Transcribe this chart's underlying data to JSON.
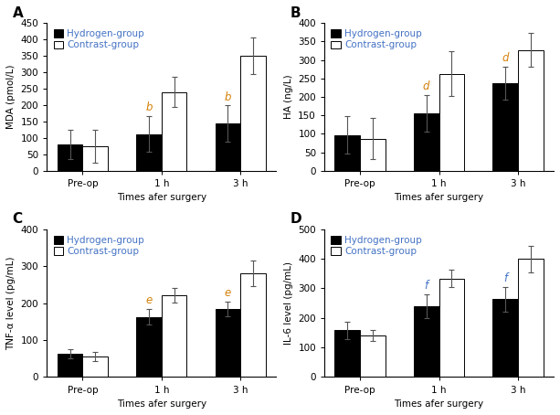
{
  "panels": [
    {
      "label": "A",
      "ylabel": "MDA (pmol/L)",
      "ylim": [
        0,
        450
      ],
      "yticks": [
        0,
        50,
        100,
        150,
        200,
        250,
        300,
        350,
        400,
        450
      ],
      "categories": [
        "Pre-op",
        "1 h",
        "3 h"
      ],
      "hydrogen_vals": [
        80,
        112,
        145
      ],
      "hydrogen_err": [
        45,
        55,
        55
      ],
      "contrast_vals": [
        75,
        240,
        350
      ],
      "contrast_err": [
        50,
        45,
        55
      ],
      "annot_labels": [
        null,
        "b",
        "b"
      ],
      "annot_color": "#d4820a"
    },
    {
      "label": "B",
      "ylabel": "HA (ng/L)",
      "ylim": [
        0,
        400
      ],
      "yticks": [
        0,
        50,
        100,
        150,
        200,
        250,
        300,
        350,
        400
      ],
      "categories": [
        "Pre-op",
        "1 h",
        "3 h"
      ],
      "hydrogen_vals": [
        97,
        156,
        237
      ],
      "hydrogen_err": [
        50,
        50,
        45
      ],
      "contrast_vals": [
        87,
        263,
        327
      ],
      "contrast_err": [
        55,
        60,
        45
      ],
      "annot_labels": [
        null,
        "d",
        "d"
      ],
      "annot_color": "#d4820a"
    },
    {
      "label": "C",
      "ylabel": "TNF-α level (pg/mL)",
      "ylim": [
        0,
        400
      ],
      "yticks": [
        0,
        100,
        200,
        300,
        400
      ],
      "categories": [
        "Pre-op",
        "1 h",
        "3 h"
      ],
      "hydrogen_vals": [
        63,
        163,
        185
      ],
      "hydrogen_err": [
        13,
        22,
        20
      ],
      "contrast_vals": [
        55,
        222,
        280
      ],
      "contrast_err": [
        12,
        20,
        35
      ],
      "annot_labels": [
        null,
        "e",
        "e"
      ],
      "annot_color": "#d4820a"
    },
    {
      "label": "D",
      "ylabel": "IL-6 level (pg/mL)",
      "ylim": [
        0,
        500
      ],
      "yticks": [
        0,
        100,
        200,
        300,
        400,
        500
      ],
      "categories": [
        "Pre-op",
        "1 h",
        "3 h"
      ],
      "hydrogen_vals": [
        158,
        240,
        263
      ],
      "hydrogen_err": [
        30,
        40,
        42
      ],
      "contrast_vals": [
        140,
        333,
        400
      ],
      "contrast_err": [
        18,
        30,
        45
      ],
      "annot_labels": [
        null,
        "f",
        "f"
      ],
      "annot_color": "#4472c4"
    }
  ],
  "xlabel": "Times afer surgery",
  "hydrogen_color": "#000000",
  "contrast_color": "#ffffff",
  "bar_edge_color": "#000000",
  "legend_h_label": "Hydrogen-group",
  "legend_c_label": "Contrast-group",
  "label_color_legend": "#4472c4",
  "label_color_panel": "#000000",
  "annot_fontsize": 8.5,
  "bar_width": 0.32,
  "figsize": [
    6.13,
    4.54
  ],
  "dpi": 100
}
